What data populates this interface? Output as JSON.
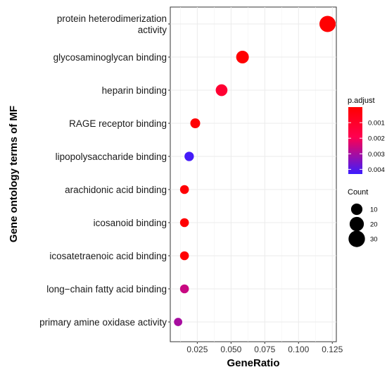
{
  "chart_data": {
    "type": "scatter",
    "title": "",
    "xlabel": "GeneRatio",
    "ylabel": "Gene ontology terms of MF",
    "xlim": [
      0.005,
      0.128
    ],
    "x_ticks": [
      0.025,
      0.05,
      0.075,
      0.1,
      0.125
    ],
    "x_tick_labels": [
      "0.025",
      "0.050",
      "0.075",
      "0.100",
      "0.125"
    ],
    "grid": true,
    "categories": [
      [
        "protein heterodimerization",
        "activity"
      ],
      [
        "glycosaminoglycan binding"
      ],
      [
        "heparin binding"
      ],
      [
        "RAGE receptor binding"
      ],
      [
        "lipopolysaccharide binding"
      ],
      [
        "arachidonic acid binding"
      ],
      [
        "icosanoid binding"
      ],
      [
        "icosatetraenoic acid binding"
      ],
      [
        "long−chain fatty acid binding"
      ],
      [
        "primary amine oxidase activity"
      ]
    ],
    "points": [
      {
        "x": 0.1215,
        "count": 29,
        "p_adjust": 2e-05
      },
      {
        "x": 0.0585,
        "count": 14,
        "p_adjust": 2e-05
      },
      {
        "x": 0.043,
        "count": 11,
        "p_adjust": 0.0012
      },
      {
        "x": 0.0235,
        "count": 6,
        "p_adjust": 0.0001
      },
      {
        "x": 0.019,
        "count": 5,
        "p_adjust": 0.0042
      },
      {
        "x": 0.0155,
        "count": 4,
        "p_adjust": 8e-05
      },
      {
        "x": 0.0155,
        "count": 4,
        "p_adjust": 8e-05
      },
      {
        "x": 0.0155,
        "count": 4,
        "p_adjust": 8e-05
      },
      {
        "x": 0.0155,
        "count": 4,
        "p_adjust": 0.0026
      },
      {
        "x": 0.0108,
        "count": 3,
        "p_adjust": 0.003
      }
    ],
    "color_legend": {
      "title": "p.adjust",
      "min": 0.0,
      "max": 0.0043,
      "ticks": [
        0.001,
        0.002,
        0.003,
        0.004
      ],
      "tick_labels": [
        "0.001",
        "0.002",
        "0.003",
        "0.004"
      ],
      "low_color": "#ff0000",
      "high_color": "#0000ff"
    },
    "size_legend": {
      "title": "Count",
      "values": [
        10,
        20,
        30
      ],
      "labels": [
        "10",
        "20",
        "30"
      ]
    },
    "legend_position": "right"
  }
}
